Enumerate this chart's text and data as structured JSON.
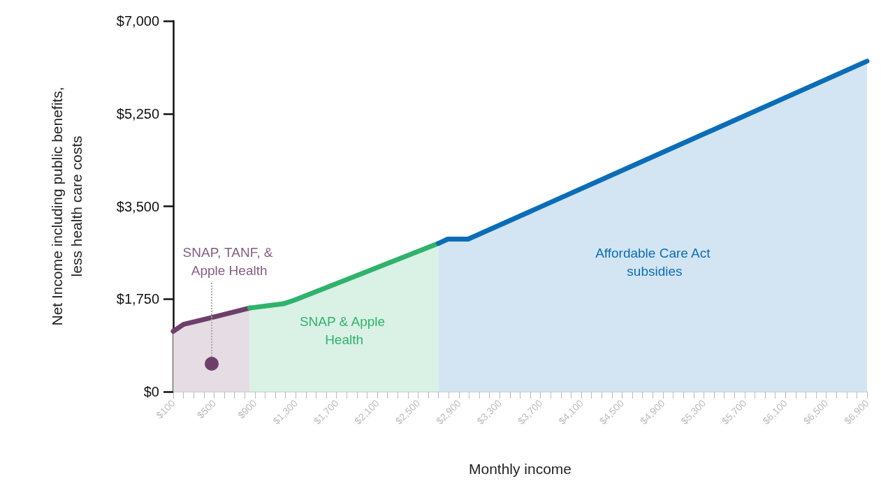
{
  "chart_data": {
    "type": "area",
    "xlabel": "Monthly income",
    "ylabel": "Net Income including public benefits,\nless health care costs",
    "series": [
      {
        "name": "SNAP, TANF, & Apple Health",
        "color": "#6e3f6a",
        "x": [
          100,
          200,
          475,
          850
        ],
        "values": [
          1140,
          1270,
          1400,
          1580
        ]
      },
      {
        "name": "SNAP & Apple Health",
        "color": "#2fb36c",
        "x": [
          850,
          1180,
          1290,
          2700
        ],
        "values": [
          1580,
          1660,
          1730,
          2800
        ]
      },
      {
        "name": "Affordable Care Act subsidies",
        "color": "#0b6db7",
        "x": [
          2700,
          2790,
          2990,
          6900
        ],
        "values": [
          2800,
          2880,
          2880,
          6240
        ]
      }
    ],
    "xlim": [
      100,
      6900
    ],
    "xticks": [
      {
        "value": 100,
        "label": "$100"
      },
      {
        "value": 200,
        "label": null
      },
      {
        "value": 300,
        "label": null
      },
      {
        "value": 400,
        "label": null
      },
      {
        "value": 500,
        "label": "$500"
      },
      {
        "value": 600,
        "label": null
      },
      {
        "value": 700,
        "label": null
      },
      {
        "value": 800,
        "label": null
      },
      {
        "value": 900,
        "label": "$900"
      },
      {
        "value": 1000,
        "label": null
      },
      {
        "value": 1100,
        "label": null
      },
      {
        "value": 1200,
        "label": null
      },
      {
        "value": 1300,
        "label": "$1,300"
      },
      {
        "value": 1400,
        "label": null
      },
      {
        "value": 1500,
        "label": null
      },
      {
        "value": 1600,
        "label": null
      },
      {
        "value": 1700,
        "label": "$1,700"
      },
      {
        "value": 1800,
        "label": null
      },
      {
        "value": 1900,
        "label": null
      },
      {
        "value": 2000,
        "label": null
      },
      {
        "value": 2100,
        "label": "$2,100"
      },
      {
        "value": 2200,
        "label": null
      },
      {
        "value": 2300,
        "label": null
      },
      {
        "value": 2400,
        "label": null
      },
      {
        "value": 2500,
        "label": "$2,500"
      },
      {
        "value": 2600,
        "label": null
      },
      {
        "value": 2700,
        "label": null
      },
      {
        "value": 2800,
        "label": null
      },
      {
        "value": 2900,
        "label": "$2,900"
      },
      {
        "value": 3000,
        "label": null
      },
      {
        "value": 3100,
        "label": null
      },
      {
        "value": 3200,
        "label": null
      },
      {
        "value": 3300,
        "label": "$3,300"
      },
      {
        "value": 3400,
        "label": null
      },
      {
        "value": 3500,
        "label": null
      },
      {
        "value": 3600,
        "label": null
      },
      {
        "value": 3700,
        "label": "$3,700"
      },
      {
        "value": 3800,
        "label": null
      },
      {
        "value": 3900,
        "label": null
      },
      {
        "value": 4000,
        "label": null
      },
      {
        "value": 4100,
        "label": "$4,100"
      },
      {
        "value": 4200,
        "label": null
      },
      {
        "value": 4300,
        "label": null
      },
      {
        "value": 4400,
        "label": null
      },
      {
        "value": 4500,
        "label": "$4,500"
      },
      {
        "value": 4600,
        "label": null
      },
      {
        "value": 4700,
        "label": null
      },
      {
        "value": 4800,
        "label": null
      },
      {
        "value": 4900,
        "label": "$4,900"
      },
      {
        "value": 5000,
        "label": null
      },
      {
        "value": 5100,
        "label": null
      },
      {
        "value": 5200,
        "label": null
      },
      {
        "value": 5300,
        "label": "$5,300"
      },
      {
        "value": 5400,
        "label": null
      },
      {
        "value": 5500,
        "label": null
      },
      {
        "value": 5600,
        "label": null
      },
      {
        "value": 5700,
        "label": "$5,700"
      },
      {
        "value": 5800,
        "label": null
      },
      {
        "value": 5900,
        "label": null
      },
      {
        "value": 6000,
        "label": null
      },
      {
        "value": 6100,
        "label": "$6,100"
      },
      {
        "value": 6200,
        "label": null
      },
      {
        "value": 6300,
        "label": null
      },
      {
        "value": 6400,
        "label": null
      },
      {
        "value": 6500,
        "label": "$6,500"
      },
      {
        "value": 6600,
        "label": null
      },
      {
        "value": 6700,
        "label": null
      },
      {
        "value": 6800,
        "label": null
      },
      {
        "value": 6900,
        "label": "$6,900"
      }
    ],
    "ylim": [
      0,
      7000
    ],
    "yticks": [
      {
        "value": 0,
        "label": "$0"
      },
      {
        "value": 1750,
        "label": "$1,750"
      },
      {
        "value": 3500,
        "label": "$3,500"
      },
      {
        "value": 5250,
        "label": "$5,250"
      },
      {
        "value": 7000,
        "label": "$7,000"
      }
    ],
    "grid": false,
    "legend": false,
    "marker": "none",
    "line_style": "solid"
  }
}
